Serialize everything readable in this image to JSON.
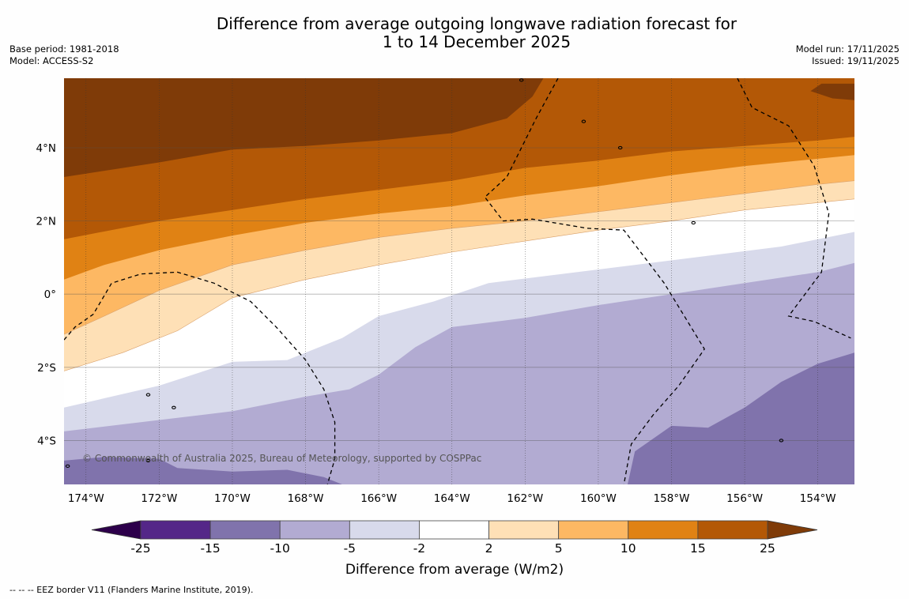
{
  "header": {
    "title_line1": "Difference from average outgoing longwave radiation forecast for",
    "title_line2": "1 to 14 December 2025",
    "base_period": "Base period: 1981-2018",
    "model": "Model: ACCESS-S2",
    "model_run": "Model run: 17/11/2025",
    "issued": "Issued: 19/11/2025"
  },
  "map": {
    "lon_range": [
      -174.6,
      -153.0
    ],
    "lat_range": [
      -5.2,
      5.9
    ],
    "lon_ticks": [
      {
        "value": -174,
        "label": "174°W"
      },
      {
        "value": -172,
        "label": "172°W"
      },
      {
        "value": -170,
        "label": "170°W"
      },
      {
        "value": -168,
        "label": "168°W"
      },
      {
        "value": -166,
        "label": "166°W"
      },
      {
        "value": -164,
        "label": "164°W"
      },
      {
        "value": -162,
        "label": "162°W"
      },
      {
        "value": -160,
        "label": "160°W"
      },
      {
        "value": -158,
        "label": "158°W"
      },
      {
        "value": -156,
        "label": "156°W"
      },
      {
        "value": -154,
        "label": "154°W"
      }
    ],
    "lat_ticks": [
      {
        "value": 4,
        "label": "4°N"
      },
      {
        "value": 2,
        "label": "2°N"
      },
      {
        "value": 0,
        "label": "0°"
      },
      {
        "value": -2,
        "label": "2°S"
      },
      {
        "value": -4,
        "label": "4°S"
      }
    ],
    "copyright": "© Commonwealth of Australia 2025, Bureau of Meteorology, supported by COSPPac",
    "bands_note": "Filled contour bands, approximate boundaries [lon, lat]; each boundary separates the band above from the band below (from north to south).",
    "bands_top_to_bottom": [
      {
        "range": ">25",
        "color": "#7f3b08"
      },
      {
        "range": "15 to 25",
        "color": "#b35806"
      },
      {
        "range": "10 to 15",
        "color": "#e08214"
      },
      {
        "range": "5 to 10",
        "color": "#fdb863"
      },
      {
        "range": "2 to 5",
        "color": "#fee0b6"
      },
      {
        "range": "-2 to 2",
        "color": "#ffffff"
      },
      {
        "range": "-5 to -2",
        "color": "#d8daeb"
      },
      {
        "range": "-10 to -5",
        "color": "#b2abd2"
      },
      {
        "range": "-15 to -10",
        "color": "#8073ac"
      }
    ],
    "boundaries": [
      [
        [
          -174.6,
          3.2
        ],
        [
          -172,
          3.6
        ],
        [
          -170,
          3.95
        ],
        [
          -168,
          4.05
        ],
        [
          -166,
          4.2
        ],
        [
          -164,
          4.4
        ],
        [
          -162.5,
          4.8
        ],
        [
          -161.8,
          5.4
        ],
        [
          -161.5,
          5.9
        ]
      ],
      [
        [
          -174.6,
          1.5
        ],
        [
          -172,
          2.0
        ],
        [
          -170,
          2.3
        ],
        [
          -168,
          2.6
        ],
        [
          -166,
          2.85
        ],
        [
          -164,
          3.1
        ],
        [
          -162,
          3.45
        ],
        [
          -160,
          3.65
        ],
        [
          -158,
          3.9
        ],
        [
          -156,
          4.05
        ],
        [
          -154,
          4.2
        ],
        [
          -153,
          4.3
        ]
      ],
      [
        [
          -174.6,
          0.4
        ],
        [
          -173.5,
          0.8
        ],
        [
          -172,
          1.2
        ],
        [
          -170,
          1.6
        ],
        [
          -168,
          1.95
        ],
        [
          -166,
          2.2
        ],
        [
          -164,
          2.4
        ],
        [
          -162,
          2.7
        ],
        [
          -160,
          2.95
        ],
        [
          -158,
          3.25
        ],
        [
          -156,
          3.5
        ],
        [
          -154,
          3.7
        ],
        [
          -153,
          3.8
        ]
      ],
      [
        [
          -174.6,
          -1.1
        ],
        [
          -173.5,
          -0.6
        ],
        [
          -172,
          0.1
        ],
        [
          -170,
          0.8
        ],
        [
          -168,
          1.2
        ],
        [
          -166,
          1.55
        ],
        [
          -164,
          1.8
        ],
        [
          -162,
          2.0
        ],
        [
          -160,
          2.25
        ],
        [
          -158,
          2.5
        ],
        [
          -156,
          2.75
        ],
        [
          -154,
          3.0
        ],
        [
          -153,
          3.1
        ]
      ],
      [
        [
          -174.6,
          -2.1
        ],
        [
          -173,
          -1.6
        ],
        [
          -171.5,
          -1.0
        ],
        [
          -170,
          -0.1
        ],
        [
          -168,
          0.4
        ],
        [
          -166,
          0.8
        ],
        [
          -164,
          1.15
        ],
        [
          -162,
          1.45
        ],
        [
          -160,
          1.75
        ],
        [
          -158,
          2.0
        ],
        [
          -156,
          2.3
        ],
        [
          -154,
          2.5
        ],
        [
          -153,
          2.6
        ]
      ],
      [
        [
          -174.6,
          -3.1
        ],
        [
          -172,
          -2.5
        ],
        [
          -170,
          -1.85
        ],
        [
          -168.5,
          -1.8
        ],
        [
          -167,
          -1.2
        ],
        [
          -166,
          -0.6
        ],
        [
          -164.5,
          -0.2
        ],
        [
          -163,
          0.3
        ],
        [
          -161,
          0.55
        ],
        [
          -159,
          0.8
        ],
        [
          -157,
          1.05
        ],
        [
          -155,
          1.3
        ],
        [
          -153,
          1.7
        ]
      ],
      [
        [
          -174.6,
          -3.75
        ],
        [
          -172.5,
          -3.5
        ],
        [
          -170,
          -3.2
        ],
        [
          -168,
          -2.8
        ],
        [
          -166.8,
          -2.6
        ],
        [
          -166,
          -2.2
        ],
        [
          -165,
          -1.45
        ],
        [
          -164,
          -0.9
        ],
        [
          -162,
          -0.65
        ],
        [
          -160,
          -0.3
        ],
        [
          -158,
          0.0
        ],
        [
          -156,
          0.3
        ],
        [
          -154,
          0.6
        ],
        [
          -153,
          0.85
        ]
      ],
      [
        [
          -174.6,
          -4.55
        ],
        [
          -173.5,
          -4.45
        ],
        [
          -172,
          -4.5
        ],
        [
          -171.5,
          -4.75
        ],
        [
          -170,
          -4.85
        ],
        [
          -168.5,
          -4.8
        ],
        [
          -167.5,
          -5.0
        ],
        [
          -167,
          -5.2
        ],
        [
          -159.2,
          -5.2
        ],
        [
          -159.0,
          -4.3
        ],
        [
          -158,
          -3.6
        ],
        [
          -157,
          -3.65
        ],
        [
          -156,
          -3.1
        ],
        [
          -155,
          -2.4
        ],
        [
          -154,
          -1.9
        ],
        [
          -153,
          -1.6
        ]
      ]
    ],
    "eez_lines": [
      [
        [
          -174.6,
          -1.25
        ],
        [
          -174.3,
          -0.9
        ],
        [
          -173.8,
          -0.55
        ],
        [
          -173.3,
          0.3
        ],
        [
          -172.5,
          0.55
        ],
        [
          -171.5,
          0.6
        ],
        [
          -170.5,
          0.3
        ],
        [
          -169.5,
          -0.2
        ],
        [
          -168.8,
          -0.9
        ],
        [
          -168,
          -1.8
        ],
        [
          -167.5,
          -2.6
        ],
        [
          -167.2,
          -3.5
        ],
        [
          -167.2,
          -4.5
        ],
        [
          -167.4,
          -5.2
        ]
      ],
      [
        [
          -161.1,
          5.9
        ],
        [
          -161.7,
          4.8
        ],
        [
          -162.5,
          3.2
        ],
        [
          -163.1,
          2.65
        ],
        [
          -162.6,
          2.0
        ],
        [
          -161.8,
          2.05
        ],
        [
          -160.3,
          1.8
        ],
        [
          -159.3,
          1.75
        ],
        [
          -158.2,
          0.3
        ],
        [
          -157.1,
          -1.5
        ],
        [
          -157.8,
          -2.5
        ],
        [
          -158.5,
          -3.3
        ],
        [
          -159.1,
          -4.1
        ],
        [
          -159.3,
          -5.2
        ]
      ],
      [
        [
          -156.2,
          5.9
        ],
        [
          -155.8,
          5.1
        ],
        [
          -154.8,
          4.6
        ],
        [
          -154.1,
          3.5
        ],
        [
          -153.7,
          2.2
        ],
        [
          -153.9,
          0.6
        ],
        [
          -154.8,
          -0.6
        ],
        [
          -154.1,
          -0.75
        ],
        [
          -153.1,
          -1.2
        ]
      ]
    ],
    "islands": [
      [
        -162.1,
        5.85
      ],
      [
        -160.4,
        4.72
      ],
      [
        -159.4,
        4.0
      ],
      [
        -157.4,
        1.95
      ],
      [
        -172.3,
        -2.75
      ],
      [
        -171.6,
        -3.1
      ],
      [
        -155.0,
        -4.0
      ],
      [
        -172.3,
        -4.55
      ],
      [
        -174.5,
        -4.7
      ]
    ]
  },
  "colorbar": {
    "levels": [
      "-25",
      "-15",
      "-10",
      "-5",
      "-2",
      "2",
      "5",
      "10",
      "15",
      "25"
    ],
    "colors": [
      "#542788",
      "#8073ac",
      "#b2abd2",
      "#d8daeb",
      "#ffffff",
      "#fee0b6",
      "#fdb863",
      "#e08214",
      "#b35806"
    ],
    "under_color": "#2d004b",
    "over_color": "#7f3b08",
    "label": "Difference from average (W/m2)"
  },
  "footnote": "--  --  -- EEZ border V11 (Flanders Marine Institute, 2019)."
}
